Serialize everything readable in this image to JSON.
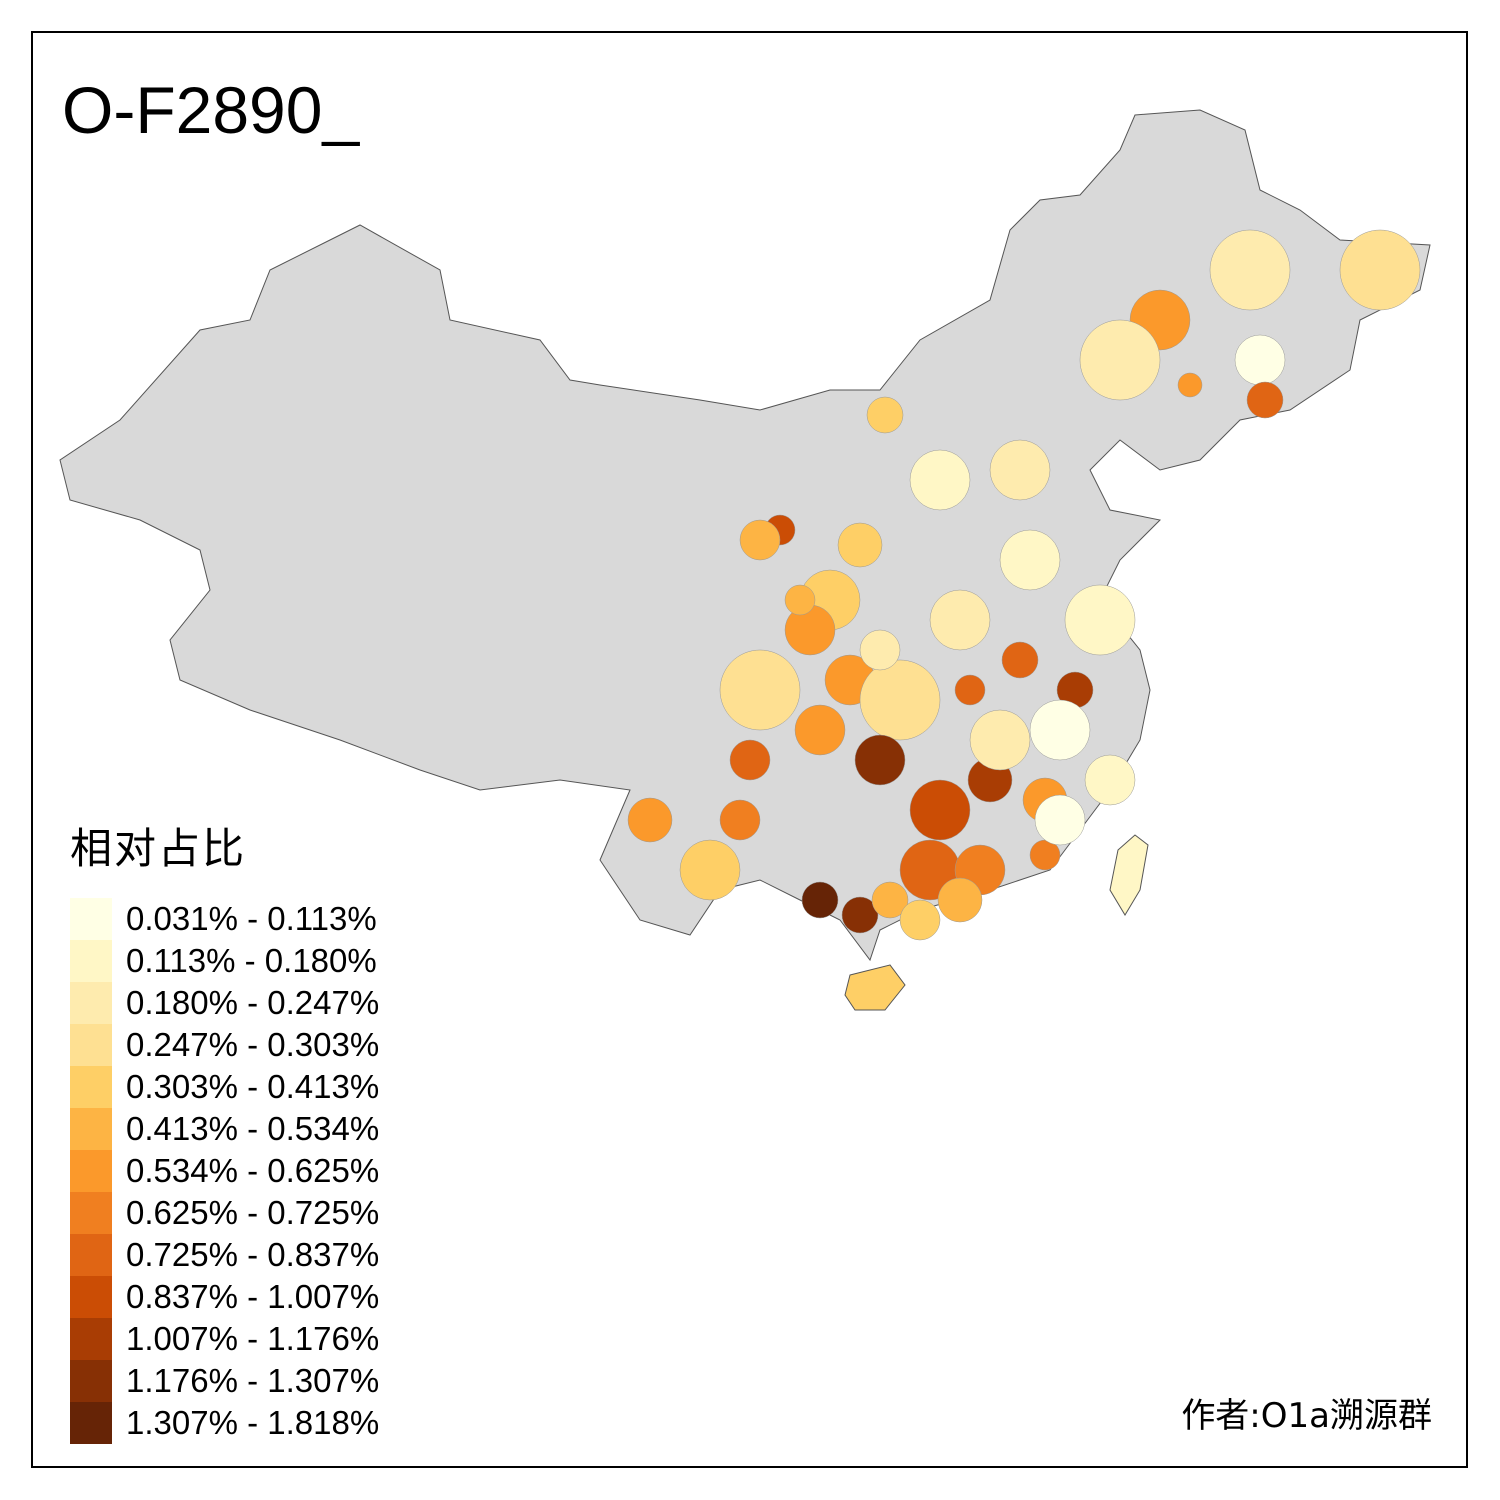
{
  "title": "O-F2890_",
  "legend": {
    "title": "相对占比",
    "items": [
      {
        "label": "0.031% - 0.113%",
        "color": "#FFFFE5"
      },
      {
        "label": "0.113% - 0.180%",
        "color": "#FFF7C6"
      },
      {
        "label": "0.180% - 0.247%",
        "color": "#FEEBAE"
      },
      {
        "label": "0.247% - 0.303%",
        "color": "#FEE092"
      },
      {
        "label": "0.303% - 0.413%",
        "color": "#FECF66"
      },
      {
        "label": "0.413% - 0.534%",
        "color": "#FDB444"
      },
      {
        "label": "0.534% - 0.625%",
        "color": "#FB992B"
      },
      {
        "label": "0.625% - 0.725%",
        "color": "#F07F20"
      },
      {
        "label": "0.725% - 0.837%",
        "color": "#E06514"
      },
      {
        "label": "0.837% - 1.007%",
        "color": "#CB4D05"
      },
      {
        "label": "1.007% - 1.176%",
        "color": "#A93D04"
      },
      {
        "label": "1.176% - 1.307%",
        "color": "#873005"
      },
      {
        "label": "1.307% - 1.818%",
        "color": "#662406"
      }
    ]
  },
  "author": "作者:O1a溯源群",
  "map_colors": {
    "no_data": "#D9D9D9",
    "border": "#555555"
  }
}
